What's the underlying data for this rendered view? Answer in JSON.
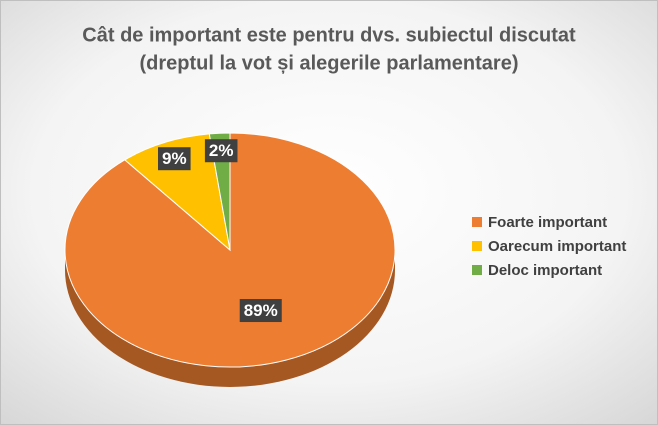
{
  "chart_data": {
    "type": "pie",
    "title": [
      "Cât de important este pentru dvs. subiectul discutat",
      "(dreptul la vot și alegerile parlamentare)"
    ],
    "categories": [
      "Foarte important",
      "Oarecum important",
      "Deloc important"
    ],
    "values": [
      89,
      9,
      2
    ],
    "value_labels": [
      "89%",
      "9%",
      "2%"
    ],
    "colors": [
      "#ed7d31",
      "#ffc000",
      "#70ad47"
    ],
    "legend": "right"
  }
}
